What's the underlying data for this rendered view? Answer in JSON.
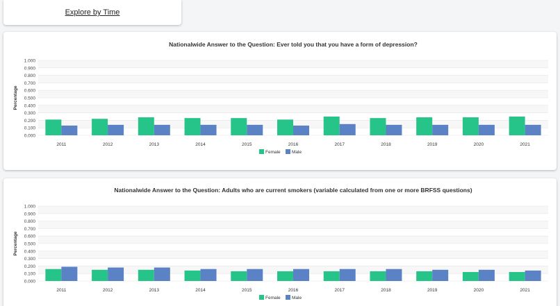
{
  "nav": {
    "explore_by_time_label": "Explore by Time"
  },
  "colors": {
    "female": "#27c48a",
    "male": "#5a82c4",
    "grid_band": "#f7f7f7",
    "grid_line": "#e6e6e6"
  },
  "chart_data": [
    {
      "type": "bar",
      "title": "Nationalwide Answer to the Question: Ever told you that you have a form of depression?",
      "xlabel": "",
      "ylabel": "Percentage",
      "ylim": [
        0,
        1
      ],
      "yticks": [
        "0.000",
        "0.100",
        "0.200",
        "0.300",
        "0.400",
        "0.500",
        "0.600",
        "0.700",
        "0.800",
        "0.900",
        "1.000"
      ],
      "categories": [
        "2011",
        "2012",
        "2013",
        "2014",
        "2015",
        "2016",
        "2017",
        "2018",
        "2019",
        "2020",
        "2021"
      ],
      "series": [
        {
          "name": "Female",
          "values": [
            0.21,
            0.22,
            0.24,
            0.23,
            0.23,
            0.21,
            0.25,
            0.23,
            0.24,
            0.24,
            0.25
          ]
        },
        {
          "name": "Male",
          "values": [
            0.13,
            0.14,
            0.14,
            0.14,
            0.14,
            0.13,
            0.15,
            0.14,
            0.14,
            0.14,
            0.14
          ]
        }
      ],
      "legend": "bottom-center"
    },
    {
      "type": "bar",
      "title": "Nationalwide Answer to the Question: Adults who are current smokers (variable calculated from one or more BRFSS questions)",
      "xlabel": "",
      "ylabel": "Percentage",
      "ylim": [
        0,
        1
      ],
      "yticks": [
        "0.000",
        "0.100",
        "0.200",
        "0.300",
        "0.400",
        "0.500",
        "0.600",
        "0.700",
        "0.800",
        "0.900",
        "1.000"
      ],
      "categories": [
        "2011",
        "2012",
        "2013",
        "2014",
        "2015",
        "2016",
        "2017",
        "2018",
        "2019",
        "2020",
        "2021"
      ],
      "series": [
        {
          "name": "Female",
          "values": [
            0.16,
            0.15,
            0.15,
            0.14,
            0.13,
            0.13,
            0.13,
            0.13,
            0.13,
            0.12,
            0.12
          ]
        },
        {
          "name": "Male",
          "values": [
            0.19,
            0.18,
            0.18,
            0.16,
            0.16,
            0.16,
            0.16,
            0.16,
            0.15,
            0.15,
            0.14
          ]
        }
      ],
      "legend": "bottom-center"
    }
  ]
}
